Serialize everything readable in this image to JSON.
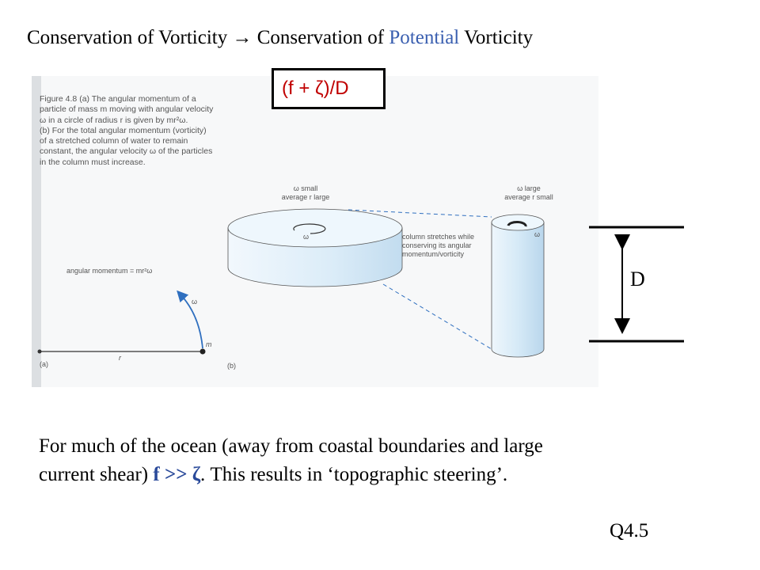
{
  "title": {
    "part1": "Conservation of Vorticity ",
    "arrow": "→",
    "part2": " Conservation of ",
    "accent_word": "Potential",
    "part3": " Vorticity"
  },
  "formula": "(f + ζ)/D",
  "figure": {
    "caption_lines": [
      "Figure 4.8 (a)   The angular momentum of a",
      "particle of mass m moving with angular velocity",
      "ω in a circle of radius r is given by mr²ω.",
      "(b)   For the total angular momentum (vorticity)",
      "of a stretched column of water to remain",
      "constant, the angular velocity ω of the particles",
      "in the column must increase."
    ],
    "disk_label": [
      "ω small",
      "average r large"
    ],
    "column_label": [
      "ω  large",
      "average r small"
    ],
    "stretch_label": [
      "column stretches while",
      "conserving its angular",
      "momentum/vorticity"
    ],
    "angular_momentum_label": "angular momentum = mr²ω",
    "omega": "ω",
    "m": "m",
    "r": "r",
    "panel_a": "(a)",
    "panel_b": "(b)"
  },
  "depth_label": "D",
  "body": {
    "line1": "For much of the ocean (away from coastal boundaries and large",
    "line2_start": "current shear) ",
    "line2_accent": "f >> ζ",
    "line2_end": ". This results in ‘topographic steering’."
  },
  "slide_ref": "Q4.5",
  "colors": {
    "accent": "#3a5fb0",
    "formula": "#c00000",
    "cylinder": "#dfeef8"
  }
}
